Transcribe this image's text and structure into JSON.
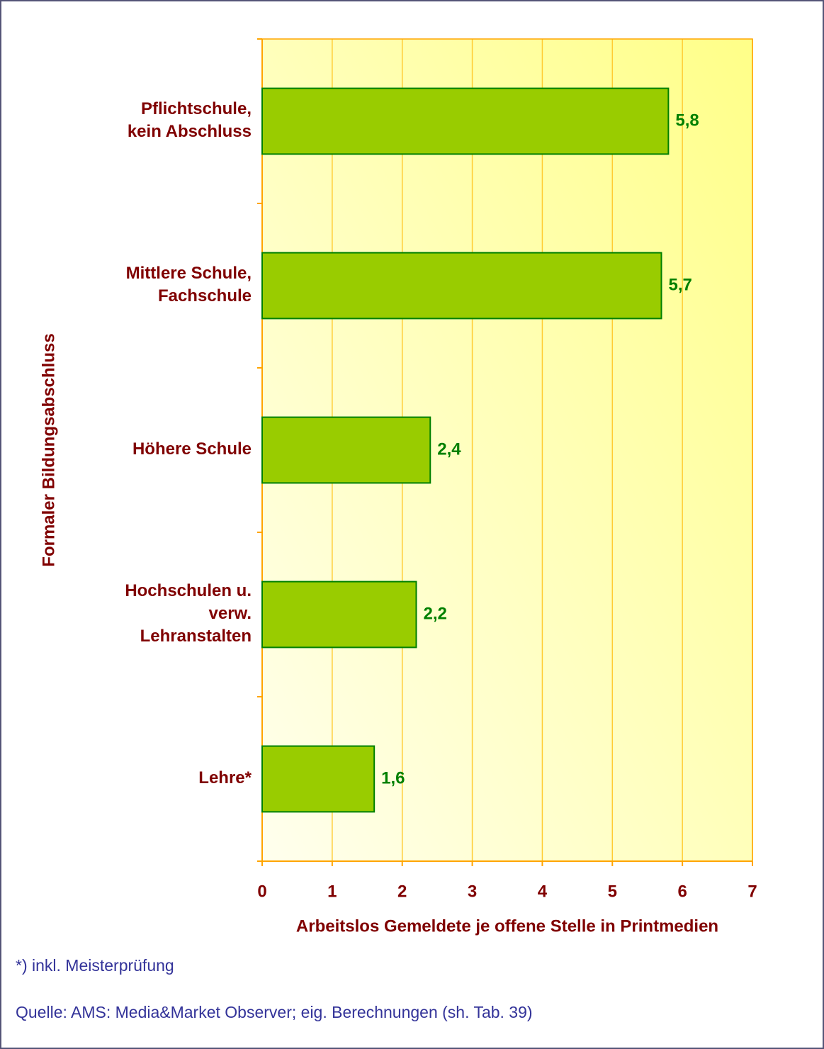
{
  "chart_data": {
    "type": "barh",
    "categories": [
      "Pflichtschule,\nkein Abschluss",
      "Mittlere Schule,\nFachschule",
      "Höhere Schule",
      "Hochschulen u.\nverw.\nLehranstalten",
      "Lehre*"
    ],
    "values": [
      5.8,
      5.7,
      2.4,
      2.2,
      1.6
    ],
    "value_labels": [
      "5,8",
      "5,7",
      "2,4",
      "2,2",
      "1,6"
    ],
    "color": "#99cc00",
    "xlim": [
      0,
      7
    ],
    "xticks": [
      0,
      1,
      2,
      3,
      4,
      5,
      6,
      7
    ],
    "grid": true,
    "xlabel": "Arbeitslos Gemeldete je offene Stelle in Printmedien",
    "ylabel": "Formaler Bildungsabschluss",
    "footnote": "*) inkl. Meisterprüfung",
    "source": "Quelle: AMS: Media&Market Observer; eig. Berechnungen (sh. Tab. 39)"
  }
}
